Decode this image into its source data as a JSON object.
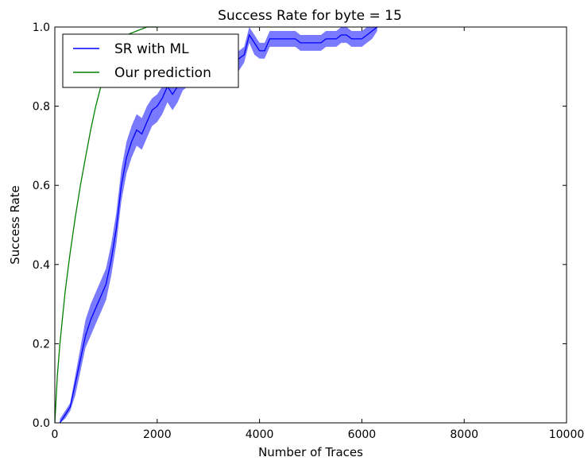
{
  "chart_data": {
    "type": "line",
    "title": "Success Rate for byte = 15",
    "xlabel": "Number of Traces",
    "ylabel": "Success Rate",
    "xlim": [
      0,
      10000
    ],
    "ylim": [
      0,
      1.0
    ],
    "xticks": [
      "0",
      "2000",
      "4000",
      "6000",
      "8000",
      "10000"
    ],
    "yticks": [
      "0.0",
      "0.2",
      "0.4",
      "0.6",
      "0.8",
      "1.0"
    ],
    "grid": false,
    "legend_position": "top-left",
    "series": [
      {
        "name": "SR with ML",
        "color": "#0000ff",
        "band_color": "#6b6bff",
        "x": [
          100,
          200,
          300,
          400,
          500,
          600,
          700,
          800,
          900,
          1000,
          1100,
          1200,
          1300,
          1400,
          1500,
          1600,
          1700,
          1800,
          1900,
          2000,
          2100,
          2200,
          2300,
          2400,
          2500,
          2600,
          2700,
          2800,
          2900,
          3000,
          3100,
          3200,
          3300,
          3400,
          3500,
          3600,
          3700,
          3800,
          3900,
          4000,
          4100,
          4200,
          4300,
          4400,
          4500,
          4600,
          4700,
          4800,
          4900,
          5000,
          5100,
          5200,
          5300,
          5400,
          5500,
          5600,
          5700,
          5800,
          5900,
          6000,
          6100,
          6200,
          6300
        ],
        "y": [
          0.0,
          0.02,
          0.04,
          0.1,
          0.16,
          0.22,
          0.26,
          0.29,
          0.32,
          0.35,
          0.41,
          0.49,
          0.6,
          0.67,
          0.71,
          0.74,
          0.73,
          0.76,
          0.79,
          0.8,
          0.82,
          0.85,
          0.83,
          0.85,
          0.87,
          0.88,
          0.9,
          0.9,
          0.89,
          0.91,
          0.9,
          0.91,
          0.92,
          0.92,
          0.91,
          0.92,
          0.93,
          0.98,
          0.96,
          0.94,
          0.94,
          0.97,
          0.97,
          0.97,
          0.97,
          0.97,
          0.97,
          0.96,
          0.96,
          0.96,
          0.96,
          0.96,
          0.97,
          0.97,
          0.97,
          0.98,
          0.98,
          0.97,
          0.97,
          0.97,
          0.98,
          0.99,
          1.0
        ],
        "lower": [
          0.0,
          0.01,
          0.03,
          0.07,
          0.13,
          0.19,
          0.22,
          0.25,
          0.28,
          0.31,
          0.37,
          0.45,
          0.56,
          0.63,
          0.67,
          0.7,
          0.69,
          0.72,
          0.75,
          0.76,
          0.78,
          0.81,
          0.79,
          0.81,
          0.84,
          0.85,
          0.87,
          0.87,
          0.86,
          0.88,
          0.87,
          0.88,
          0.89,
          0.89,
          0.88,
          0.89,
          0.91,
          0.96,
          0.93,
          0.92,
          0.92,
          0.95,
          0.95,
          0.95,
          0.95,
          0.95,
          0.95,
          0.94,
          0.94,
          0.94,
          0.94,
          0.94,
          0.95,
          0.95,
          0.95,
          0.96,
          0.96,
          0.95,
          0.95,
          0.95,
          0.96,
          0.97,
          0.99
        ],
        "upper": [
          0.01,
          0.03,
          0.05,
          0.12,
          0.19,
          0.26,
          0.3,
          0.33,
          0.36,
          0.39,
          0.45,
          0.53,
          0.64,
          0.71,
          0.75,
          0.78,
          0.77,
          0.8,
          0.82,
          0.83,
          0.85,
          0.88,
          0.86,
          0.88,
          0.9,
          0.91,
          0.92,
          0.92,
          0.91,
          0.93,
          0.92,
          0.93,
          0.94,
          0.94,
          0.93,
          0.94,
          0.95,
          1.0,
          0.98,
          0.96,
          0.96,
          0.99,
          0.99,
          0.99,
          0.99,
          0.99,
          0.99,
          0.98,
          0.98,
          0.98,
          0.98,
          0.98,
          0.99,
          0.99,
          0.99,
          1.0,
          1.0,
          0.99,
          0.99,
          0.99,
          1.0,
          1.0,
          1.0
        ]
      },
      {
        "name": "Our prediction",
        "color": "#008000",
        "x": [
          0,
          50,
          100,
          200,
          300,
          400,
          500,
          600,
          700,
          800,
          900,
          1000,
          1200,
          1400,
          1600,
          1800,
          2000
        ],
        "y": [
          0.0,
          0.12,
          0.2,
          0.33,
          0.43,
          0.52,
          0.6,
          0.67,
          0.74,
          0.8,
          0.85,
          0.9,
          0.95,
          0.98,
          0.99,
          1.0,
          1.0
        ]
      }
    ]
  }
}
